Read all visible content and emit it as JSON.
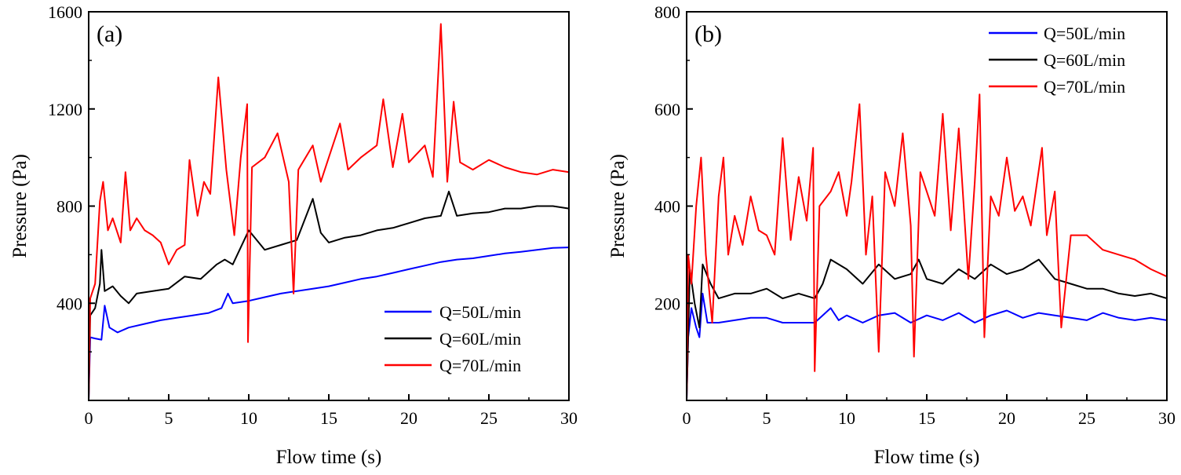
{
  "chart_data": [
    {
      "type": "line",
      "panel_label": "(a)",
      "xlabel": "Flow time (s)",
      "ylabel": "Pressure (Pa)",
      "xlim": [
        0,
        30
      ],
      "ylim": [
        0,
        1600
      ],
      "xticks": [
        0,
        5,
        10,
        15,
        20,
        25,
        30
      ],
      "yticks": [
        400,
        800,
        1200,
        1600
      ],
      "grid": false,
      "legend_position": "bottom-right",
      "series": [
        {
          "name": "Q=50L/min",
          "color": "#0000ff",
          "points": [
            [
              0,
              0
            ],
            [
              0.1,
              260
            ],
            [
              0.4,
              255
            ],
            [
              0.8,
              250
            ],
            [
              1.0,
              390
            ],
            [
              1.3,
              300
            ],
            [
              1.8,
              280
            ],
            [
              2.5,
              300
            ],
            [
              3.5,
              315
            ],
            [
              4.5,
              330
            ],
            [
              5.5,
              340
            ],
            [
              6.5,
              350
            ],
            [
              7.5,
              360
            ],
            [
              8.3,
              380
            ],
            [
              8.7,
              440
            ],
            [
              9.0,
              400
            ],
            [
              10,
              410
            ],
            [
              11,
              425
            ],
            [
              12,
              440
            ],
            [
              13,
              450
            ],
            [
              14,
              460
            ],
            [
              15,
              470
            ],
            [
              16,
              485
            ],
            [
              17,
              500
            ],
            [
              18,
              510
            ],
            [
              19,
              525
            ],
            [
              20,
              540
            ],
            [
              21,
              555
            ],
            [
              22,
              570
            ],
            [
              23,
              580
            ],
            [
              24,
              585
            ],
            [
              25,
              595
            ],
            [
              26,
              605
            ],
            [
              27,
              612
            ],
            [
              28,
              620
            ],
            [
              29,
              628
            ],
            [
              30,
              630
            ]
          ]
        },
        {
          "name": "Q=60L/min",
          "color": "#000000",
          "points": [
            [
              0,
              0
            ],
            [
              0.1,
              350
            ],
            [
              0.4,
              380
            ],
            [
              0.7,
              480
            ],
            [
              0.8,
              620
            ],
            [
              1.0,
              450
            ],
            [
              1.5,
              470
            ],
            [
              2,
              430
            ],
            [
              2.5,
              400
            ],
            [
              3,
              440
            ],
            [
              4,
              450
            ],
            [
              5,
              460
            ],
            [
              6,
              510
            ],
            [
              7,
              500
            ],
            [
              8,
              560
            ],
            [
              8.5,
              580
            ],
            [
              9,
              560
            ],
            [
              10,
              700
            ],
            [
              11,
              620
            ],
            [
              12,
              640
            ],
            [
              13,
              660
            ],
            [
              14,
              830
            ],
            [
              14.5,
              690
            ],
            [
              15,
              650
            ],
            [
              16,
              670
            ],
            [
              17,
              680
            ],
            [
              18,
              700
            ],
            [
              19,
              710
            ],
            [
              20,
              730
            ],
            [
              21,
              750
            ],
            [
              22,
              760
            ],
            [
              22.5,
              860
            ],
            [
              23,
              760
            ],
            [
              24,
              770
            ],
            [
              25,
              775
            ],
            [
              26,
              790
            ],
            [
              27,
              790
            ],
            [
              28,
              800
            ],
            [
              29,
              800
            ],
            [
              30,
              790
            ]
          ]
        },
        {
          "name": "Q=70L/min",
          "color": "#ff0000",
          "points": [
            [
              0,
              0
            ],
            [
              0.1,
              420
            ],
            [
              0.4,
              480
            ],
            [
              0.7,
              820
            ],
            [
              0.9,
              900
            ],
            [
              1.2,
              700
            ],
            [
              1.5,
              750
            ],
            [
              2,
              650
            ],
            [
              2.3,
              940
            ],
            [
              2.6,
              700
            ],
            [
              3,
              750
            ],
            [
              3.5,
              700
            ],
            [
              4,
              680
            ],
            [
              4.5,
              650
            ],
            [
              5,
              560
            ],
            [
              5.5,
              620
            ],
            [
              6,
              640
            ],
            [
              6.3,
              990
            ],
            [
              6.8,
              760
            ],
            [
              7.2,
              900
            ],
            [
              7.6,
              850
            ],
            [
              8.1,
              1330
            ],
            [
              8.6,
              950
            ],
            [
              9.1,
              680
            ],
            [
              9.5,
              1000
            ],
            [
              9.9,
              1220
            ],
            [
              9.95,
              240
            ],
            [
              10.2,
              960
            ],
            [
              11,
              1000
            ],
            [
              11.8,
              1100
            ],
            [
              12.5,
              900
            ],
            [
              12.8,
              440
            ],
            [
              13.1,
              950
            ],
            [
              14,
              1050
            ],
            [
              14.5,
              900
            ],
            [
              15,
              1000
            ],
            [
              15.7,
              1140
            ],
            [
              16.2,
              950
            ],
            [
              17,
              1000
            ],
            [
              18,
              1050
            ],
            [
              18.4,
              1240
            ],
            [
              19,
              960
            ],
            [
              19.6,
              1180
            ],
            [
              20,
              980
            ],
            [
              21,
              1050
            ],
            [
              21.5,
              920
            ],
            [
              22,
              1550
            ],
            [
              22.4,
              900
            ],
            [
              22.8,
              1230
            ],
            [
              23.2,
              980
            ],
            [
              24,
              950
            ],
            [
              25,
              990
            ],
            [
              26,
              960
            ],
            [
              27,
              940
            ],
            [
              28,
              930
            ],
            [
              29,
              950
            ],
            [
              30,
              940
            ]
          ]
        }
      ]
    },
    {
      "type": "line",
      "panel_label": "(b)",
      "xlabel": "Flow time (s)",
      "ylabel": "Pressure (Pa)",
      "xlim": [
        0,
        30
      ],
      "ylim": [
        0,
        800
      ],
      "xticks": [
        0,
        5,
        10,
        15,
        20,
        25,
        30
      ],
      "yticks": [
        200,
        400,
        600,
        800
      ],
      "grid": false,
      "legend_position": "top-right",
      "series": [
        {
          "name": "Q=50L/min",
          "color": "#0000ff",
          "points": [
            [
              0,
              0
            ],
            [
              0.1,
              130
            ],
            [
              0.3,
              190
            ],
            [
              0.6,
              150
            ],
            [
              0.8,
              130
            ],
            [
              1.0,
              220
            ],
            [
              1.3,
              160
            ],
            [
              2,
              160
            ],
            [
              3,
              165
            ],
            [
              4,
              170
            ],
            [
              5,
              170
            ],
            [
              6,
              160
            ],
            [
              7,
              160
            ],
            [
              8,
              160
            ],
            [
              8.5,
              175
            ],
            [
              9,
              190
            ],
            [
              9.5,
              165
            ],
            [
              10,
              175
            ],
            [
              11,
              160
            ],
            [
              12,
              175
            ],
            [
              13,
              180
            ],
            [
              14,
              160
            ],
            [
              15,
              175
            ],
            [
              16,
              165
            ],
            [
              17,
              180
            ],
            [
              18,
              160
            ],
            [
              19,
              175
            ],
            [
              20,
              185
            ],
            [
              21,
              170
            ],
            [
              22,
              180
            ],
            [
              23,
              175
            ],
            [
              24,
              170
            ],
            [
              25,
              165
            ],
            [
              26,
              180
            ],
            [
              27,
              170
            ],
            [
              28,
              165
            ],
            [
              29,
              170
            ],
            [
              30,
              165
            ]
          ]
        },
        {
          "name": "Q=60L/min",
          "color": "#000000",
          "points": [
            [
              0,
              0
            ],
            [
              0.2,
              270
            ],
            [
              0.5,
              200
            ],
            [
              0.8,
              150
            ],
            [
              1.0,
              280
            ],
            [
              1.5,
              240
            ],
            [
              2,
              210
            ],
            [
              3,
              220
            ],
            [
              4,
              220
            ],
            [
              5,
              230
            ],
            [
              6,
              210
            ],
            [
              7,
              220
            ],
            [
              8,
              210
            ],
            [
              8.5,
              240
            ],
            [
              9,
              290
            ],
            [
              10,
              270
            ],
            [
              11,
              240
            ],
            [
              12,
              280
            ],
            [
              13,
              250
            ],
            [
              14,
              260
            ],
            [
              14.5,
              290
            ],
            [
              15,
              250
            ],
            [
              16,
              240
            ],
            [
              17,
              270
            ],
            [
              18,
              250
            ],
            [
              19,
              280
            ],
            [
              20,
              260
            ],
            [
              21,
              270
            ],
            [
              22,
              290
            ],
            [
              23,
              250
            ],
            [
              24,
              240
            ],
            [
              25,
              230
            ],
            [
              26,
              230
            ],
            [
              27,
              220
            ],
            [
              28,
              215
            ],
            [
              29,
              220
            ],
            [
              30,
              210
            ]
          ]
        },
        {
          "name": "Q=70L/min",
          "color": "#ff0000",
          "points": [
            [
              0,
              0
            ],
            [
              0.1,
              300
            ],
            [
              0.3,
              240
            ],
            [
              0.6,
              400
            ],
            [
              0.9,
              500
            ],
            [
              1.2,
              300
            ],
            [
              1.6,
              160
            ],
            [
              2,
              420
            ],
            [
              2.3,
              500
            ],
            [
              2.6,
              300
            ],
            [
              3,
              380
            ],
            [
              3.5,
              320
            ],
            [
              4,
              420
            ],
            [
              4.5,
              350
            ],
            [
              5,
              340
            ],
            [
              5.5,
              300
            ],
            [
              6,
              540
            ],
            [
              6.5,
              330
            ],
            [
              7,
              460
            ],
            [
              7.5,
              370
            ],
            [
              7.9,
              520
            ],
            [
              8.0,
              60
            ],
            [
              8.3,
              400
            ],
            [
              9,
              430
            ],
            [
              9.5,
              470
            ],
            [
              10,
              380
            ],
            [
              10.3,
              450
            ],
            [
              10.8,
              610
            ],
            [
              11.2,
              300
            ],
            [
              11.6,
              420
            ],
            [
              12,
              100
            ],
            [
              12.4,
              470
            ],
            [
              13,
              400
            ],
            [
              13.5,
              550
            ],
            [
              14,
              360
            ],
            [
              14.2,
              90
            ],
            [
              14.6,
              470
            ],
            [
              15,
              430
            ],
            [
              15.5,
              380
            ],
            [
              16,
              590
            ],
            [
              16.5,
              350
            ],
            [
              17,
              560
            ],
            [
              17.6,
              250
            ],
            [
              18,
              450
            ],
            [
              18.3,
              630
            ],
            [
              18.6,
              130
            ],
            [
              19,
              420
            ],
            [
              19.5,
              380
            ],
            [
              20,
              500
            ],
            [
              20.5,
              390
            ],
            [
              21,
              420
            ],
            [
              21.5,
              360
            ],
            [
              22.2,
              520
            ],
            [
              22.5,
              340
            ],
            [
              23,
              430
            ],
            [
              23.4,
              150
            ],
            [
              24,
              340
            ],
            [
              25,
              340
            ],
            [
              26,
              310
            ],
            [
              27,
              300
            ],
            [
              28,
              290
            ],
            [
              29,
              270
            ],
            [
              30,
              255
            ]
          ]
        }
      ]
    }
  ]
}
